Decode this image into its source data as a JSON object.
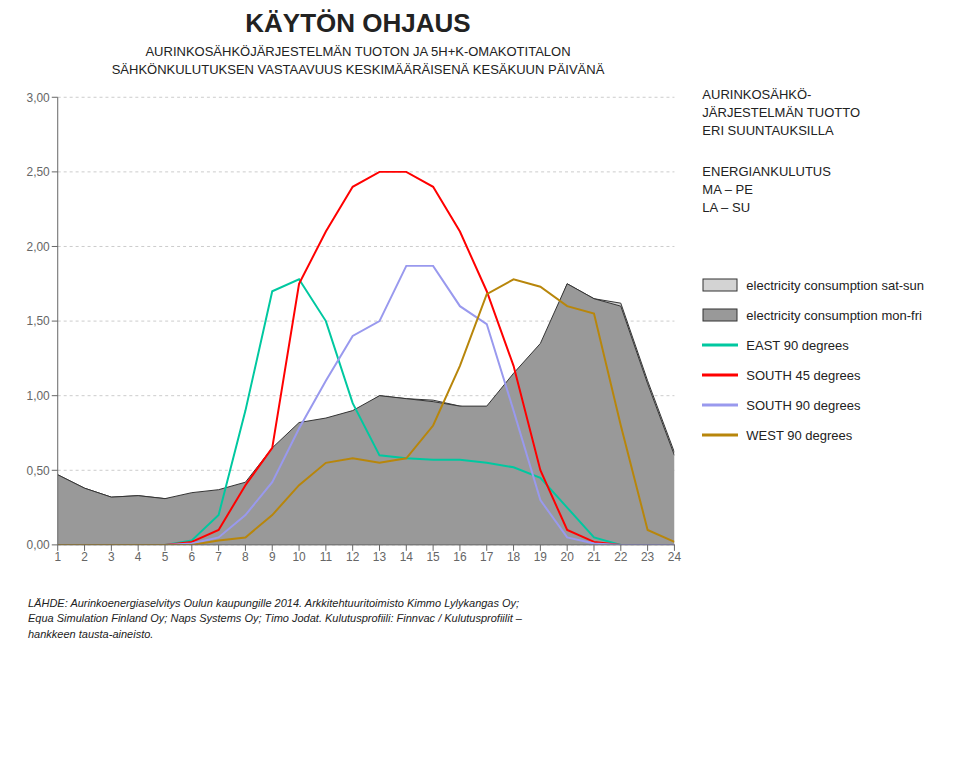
{
  "chart_data": {
    "type": "line",
    "title": "KÄYTÖN OHJAUS",
    "subtitle": "AURINKOSÄHKÖJÄRJESTELMÄN TUOTON JA 5H+K-OMAKOTITALON\nSÄHKÖNKULUTUKSEN VASTAAVUUS KESKIMÄÄRÄISENÄ KESÄKUUN PÄIVÄNÄ",
    "annotations": [
      "AURINKOSÄHKÖ-\nJÄRJESTELMÄN TUOTTO\nERI SUUNTAUKSILLA",
      "ENERGIANKULUTUS\nMA – PE\nLA – SU"
    ],
    "footer": "LÄHDE: Aurinkoenergiaselvitys Oulun kaupungille 2014. Arkkitehtuuritoimisto Kimmo Lylykangas Oy;\nEqua Simulation Finland Oy; Naps Systems Oy; Timo Jodat. Kulutusprofiili: Finnvac / Kulutusprofiilit –\nhankkeen tausta-aineisto.",
    "x": [
      1,
      2,
      3,
      4,
      5,
      6,
      7,
      8,
      9,
      10,
      11,
      12,
      13,
      14,
      15,
      16,
      17,
      18,
      19,
      20,
      21,
      22,
      23,
      24
    ],
    "xlim": [
      1,
      24
    ],
    "xticks": [
      1,
      2,
      3,
      4,
      5,
      6,
      7,
      8,
      9,
      10,
      11,
      12,
      13,
      14,
      15,
      16,
      17,
      18,
      19,
      20,
      21,
      22,
      23,
      24
    ],
    "ylim": [
      0.0,
      3.0
    ],
    "yticks": [
      {
        "value": 0.0,
        "label": "0,00"
      },
      {
        "value": 0.5,
        "label": "0,50"
      },
      {
        "value": 1.0,
        "label": "1,00"
      },
      {
        "value": 1.5,
        "label": "1,50"
      },
      {
        "value": 2.0,
        "label": "2,00"
      },
      {
        "value": 2.5,
        "label": "2,50"
      },
      {
        "value": 3.0,
        "label": "3,00"
      }
    ],
    "grid": "y",
    "series": [
      {
        "name": "electricity consumption sat-sun",
        "type": "area",
        "color": "#d3d3d3",
        "values": [
          0.47,
          0.38,
          0.32,
          0.33,
          0.31,
          0.32,
          0.35,
          0.4,
          0.6,
          0.78,
          0.8,
          0.88,
          1.0,
          0.98,
          0.97,
          0.93,
          0.9,
          1.1,
          1.3,
          1.75,
          1.65,
          1.62,
          1.1,
          0.62
        ]
      },
      {
        "name": "electricity consumption mon-fri",
        "type": "area",
        "color": "#999999",
        "values": [
          0.47,
          0.38,
          0.32,
          0.33,
          0.31,
          0.35,
          0.37,
          0.42,
          0.65,
          0.82,
          0.85,
          0.9,
          1.0,
          0.98,
          0.96,
          0.93,
          0.93,
          1.15,
          1.35,
          1.75,
          1.65,
          1.6,
          1.08,
          0.6
        ]
      },
      {
        "name": "EAST 90 degrees",
        "type": "line",
        "color": "#00c8a0",
        "values": [
          0.0,
          0.0,
          0.0,
          0.0,
          0.0,
          0.03,
          0.2,
          0.9,
          1.7,
          1.78,
          1.5,
          0.95,
          0.6,
          0.58,
          0.57,
          0.57,
          0.55,
          0.52,
          0.45,
          0.25,
          0.05,
          0.0,
          0.0,
          0.0
        ]
      },
      {
        "name": "SOUTH 45 degrees",
        "type": "line",
        "color": "#ff0000",
        "values": [
          0.0,
          0.0,
          0.0,
          0.0,
          0.0,
          0.02,
          0.1,
          0.4,
          0.65,
          1.75,
          2.1,
          2.4,
          2.5,
          2.5,
          2.4,
          2.1,
          1.7,
          1.2,
          0.5,
          0.1,
          0.02,
          0.0,
          0.0,
          0.0
        ]
      },
      {
        "name": "SOUTH 90 degrees",
        "type": "line",
        "color": "#9999ee",
        "values": [
          0.0,
          0.0,
          0.0,
          0.0,
          0.0,
          0.01,
          0.05,
          0.2,
          0.42,
          0.78,
          1.1,
          1.4,
          1.5,
          1.87,
          1.87,
          1.6,
          1.48,
          0.9,
          0.3,
          0.05,
          0.01,
          0.0,
          0.0,
          0.0
        ]
      },
      {
        "name": "WEST 90 degrees",
        "type": "line",
        "color": "#b8860b",
        "values": [
          0.0,
          0.0,
          0.0,
          0.0,
          0.0,
          0.0,
          0.03,
          0.05,
          0.2,
          0.4,
          0.55,
          0.58,
          0.55,
          0.58,
          0.8,
          1.2,
          1.68,
          1.78,
          1.73,
          1.6,
          1.55,
          0.8,
          0.1,
          0.02
        ]
      }
    ]
  }
}
